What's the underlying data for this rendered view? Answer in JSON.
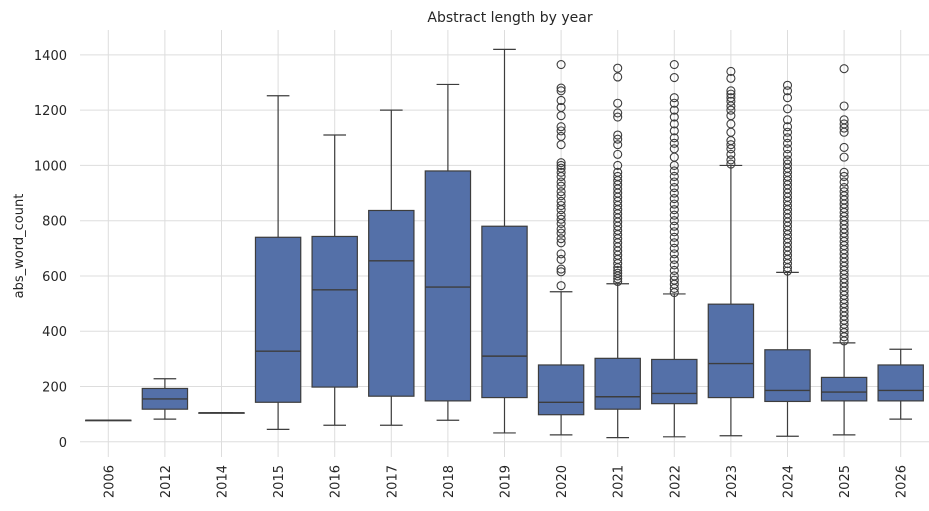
{
  "chart_data": {
    "type": "box",
    "title": "Abstract length by year",
    "xlabel": "",
    "ylabel": "abs_word_count",
    "ylim": [
      -55,
      1490
    ],
    "yticks": [
      0,
      200,
      400,
      600,
      800,
      1000,
      1200,
      1400
    ],
    "grid": true,
    "legend": "none",
    "box_color": "#5470a8",
    "line_color": "#3d3d3d",
    "categories": [
      "2006",
      "2012",
      "2014",
      "2015",
      "2016",
      "2017",
      "2018",
      "2019",
      "2020",
      "2021",
      "2022",
      "2023",
      "2024",
      "2025",
      "2026"
    ],
    "boxes": [
      {
        "year": "2006",
        "whislo": 78,
        "q1": 78,
        "med": 78,
        "q3": 78,
        "whishi": 78,
        "fliers": []
      },
      {
        "year": "2012",
        "whislo": 82,
        "q1": 118,
        "med": 155,
        "q3": 193,
        "whishi": 228,
        "fliers": []
      },
      {
        "year": "2014",
        "whislo": 105,
        "q1": 105,
        "med": 105,
        "q3": 105,
        "whishi": 105,
        "fliers": []
      },
      {
        "year": "2015",
        "whislo": 45,
        "q1": 143,
        "med": 328,
        "q3": 740,
        "whishi": 1252,
        "fliers": []
      },
      {
        "year": "2016",
        "whislo": 60,
        "q1": 198,
        "med": 550,
        "q3": 743,
        "whishi": 1110,
        "fliers": []
      },
      {
        "year": "2017",
        "whislo": 60,
        "q1": 165,
        "med": 655,
        "q3": 837,
        "whishi": 1200,
        "fliers": []
      },
      {
        "year": "2018",
        "whislo": 78,
        "q1": 148,
        "med": 560,
        "q3": 980,
        "whishi": 1293,
        "fliers": []
      },
      {
        "year": "2019",
        "whislo": 32,
        "q1": 160,
        "med": 310,
        "q3": 780,
        "whishi": 1420,
        "fliers": []
      },
      {
        "year": "2020",
        "whislo": 25,
        "q1": 98,
        "med": 143,
        "q3": 278,
        "whishi": 543,
        "fliers": [
          565,
          615,
          625,
          660,
          680,
          720,
          735,
          755,
          770,
          790,
          805,
          820,
          840,
          855,
          870,
          890,
          905,
          925,
          940,
          960,
          975,
          990,
          1000,
          1010,
          1075,
          1105,
          1125,
          1140,
          1180,
          1210,
          1235,
          1270,
          1280,
          1365
        ]
      },
      {
        "year": "2021",
        "whislo": 15,
        "q1": 118,
        "med": 163,
        "q3": 302,
        "whishi": 572,
        "fliers": [
          580,
          590,
          600,
          610,
          620,
          630,
          645,
          660,
          675,
          690,
          705,
          720,
          735,
          750,
          765,
          780,
          795,
          810,
          825,
          840,
          855,
          870,
          885,
          900,
          915,
          930,
          945,
          960,
          975,
          1000,
          1040,
          1075,
          1095,
          1110,
          1175,
          1190,
          1225,
          1320,
          1352
        ]
      },
      {
        "year": "2022",
        "whislo": 18,
        "q1": 138,
        "med": 175,
        "q3": 298,
        "whishi": 535,
        "fliers": [
          540,
          555,
          570,
          585,
          600,
          620,
          640,
          660,
          680,
          700,
          720,
          740,
          760,
          780,
          800,
          820,
          840,
          860,
          880,
          900,
          920,
          940,
          960,
          980,
          1000,
          1030,
          1060,
          1080,
          1100,
          1125,
          1150,
          1175,
          1200,
          1225,
          1245,
          1318,
          1365
        ]
      },
      {
        "year": "2023",
        "whislo": 22,
        "q1": 160,
        "med": 283,
        "q3": 498,
        "whishi": 1000,
        "fliers": [
          1005,
          1020,
          1040,
          1060,
          1075,
          1090,
          1120,
          1150,
          1180,
          1200,
          1215,
          1232,
          1245,
          1258,
          1270,
          1315,
          1340
        ]
      },
      {
        "year": "2024",
        "whislo": 20,
        "q1": 146,
        "med": 186,
        "q3": 333,
        "whishi": 613,
        "fliers": [
          618,
          630,
          645,
          660,
          675,
          690,
          705,
          720,
          735,
          750,
          765,
          780,
          795,
          810,
          825,
          840,
          855,
          870,
          885,
          900,
          915,
          930,
          945,
          960,
          975,
          990,
          1005,
          1020,
          1040,
          1060,
          1080,
          1100,
          1120,
          1140,
          1165,
          1205,
          1245,
          1270,
          1290
        ]
      },
      {
        "year": "2025",
        "whislo": 25,
        "q1": 148,
        "med": 180,
        "q3": 233,
        "whishi": 358,
        "fliers": [
          365,
          380,
          395,
          410,
          425,
          440,
          455,
          470,
          485,
          500,
          515,
          530,
          545,
          560,
          575,
          590,
          605,
          620,
          635,
          650,
          665,
          680,
          695,
          710,
          725,
          740,
          755,
          770,
          785,
          800,
          815,
          830,
          845,
          860,
          875,
          890,
          905,
          920,
          940,
          960,
          975,
          1030,
          1065,
          1120,
          1135,
          1150,
          1165,
          1215,
          1350
        ]
      },
      {
        "year": "2026",
        "whislo": 82,
        "q1": 148,
        "med": 186,
        "q3": 278,
        "whishi": 335,
        "fliers": []
      }
    ]
  }
}
